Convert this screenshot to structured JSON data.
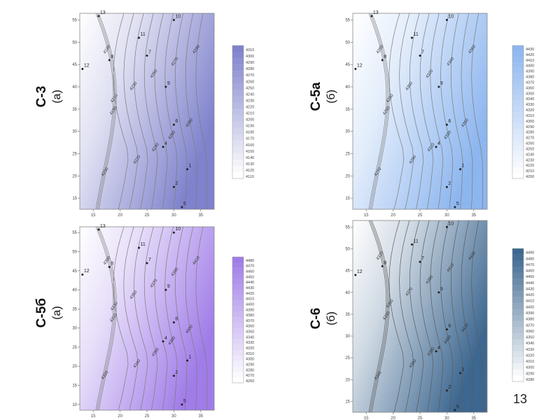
{
  "slide_number": "13",
  "chart_data": [
    {
      "type": "contour",
      "label": "С-3",
      "sub": "(а)",
      "colors": {
        "low": "#ffffff",
        "high": "#7f82cc",
        "line": "#7c7c7c"
      },
      "x_ticks": [
        "15",
        "20",
        "25",
        "30",
        "35"
      ],
      "y_ticks": [
        "15",
        "20",
        "25",
        "30",
        "35",
        "40",
        "45",
        "50",
        "55"
      ],
      "xlim": [
        12.5,
        37.5
      ],
      "ylim": [
        12.5,
        56.5
      ],
      "contour_labels": [
        "4180",
        "4190",
        "4200",
        "4210",
        "4220",
        "4230",
        "4240",
        "4250",
        "4260",
        "4270",
        "4280",
        "4290"
      ],
      "legend": [
        "4310",
        "4300",
        "4290",
        "4280",
        "4270",
        "4260",
        "4250",
        "4240",
        "4230",
        "4220",
        "4210",
        "4200",
        "4190",
        "4180",
        "4170",
        "4160",
        "4150",
        "4140",
        "4130",
        "4120",
        "4110"
      ],
      "wells": [
        {
          "name": "10",
          "x": 30.0,
          "y": 55.0
        },
        {
          "name": "11",
          "x": 23.5,
          "y": 51.0
        },
        {
          "name": "8",
          "x": 18.0,
          "y": 46.0
        },
        {
          "name": "7",
          "x": 25.0,
          "y": 47.0
        },
        {
          "name": "9",
          "x": 28.5,
          "y": 40.0
        },
        {
          "name": "6",
          "x": 30.0,
          "y": 31.5
        },
        {
          "name": "4",
          "x": 28.0,
          "y": 26.5
        },
        {
          "name": "1",
          "x": 32.5,
          "y": 21.5
        },
        {
          "name": "2",
          "x": 30.0,
          "y": 17.5
        },
        {
          "name": "12",
          "x": 13.0,
          "y": 44.0
        },
        {
          "name": "5",
          "x": 31.5,
          "y": 13.0
        },
        {
          "name": "13",
          "x": 16.0,
          "y": 56.5
        }
      ]
    },
    {
      "type": "contour",
      "label": "С-5а",
      "sub": "(б)",
      "colors": {
        "low": "#ffffff",
        "high": "#8db6ef",
        "line": "#7c7c7c"
      },
      "x_ticks": [
        "15",
        "20",
        "25",
        "30",
        "35"
      ],
      "y_ticks": [
        "15",
        "20",
        "25",
        "30",
        "35",
        "40",
        "45",
        "50",
        "55"
      ],
      "xlim": [
        12.5,
        37.5
      ],
      "ylim": [
        12.5,
        56.5
      ],
      "contour_labels": [
        "4250",
        "4260",
        "4270",
        "4280",
        "4290",
        "4300",
        "4310",
        "4320",
        "4330",
        "4340",
        "4350",
        "4360"
      ],
      "legend": [
        "4430",
        "4420",
        "4410",
        "4400",
        "4390",
        "4380",
        "4370",
        "4360",
        "4350",
        "4340",
        "4330",
        "4320",
        "4310",
        "4300",
        "4290",
        "4280",
        "4270",
        "4260",
        "4250",
        "4240",
        "4230",
        "4220",
        "4210",
        "4200"
      ],
      "wells": [
        {
          "name": "10",
          "x": 30.0,
          "y": 55.0
        },
        {
          "name": "11",
          "x": 23.5,
          "y": 51.0
        },
        {
          "name": "8",
          "x": 18.0,
          "y": 46.0
        },
        {
          "name": "7",
          "x": 25.0,
          "y": 47.0
        },
        {
          "name": "9",
          "x": 28.5,
          "y": 40.0
        },
        {
          "name": "6",
          "x": 30.0,
          "y": 31.5
        },
        {
          "name": "4",
          "x": 28.0,
          "y": 26.5
        },
        {
          "name": "1",
          "x": 32.5,
          "y": 21.5
        },
        {
          "name": "2",
          "x": 30.0,
          "y": 17.5
        },
        {
          "name": "12",
          "x": 13.0,
          "y": 44.0
        },
        {
          "name": "5",
          "x": 31.5,
          "y": 13.0
        },
        {
          "name": "13",
          "x": 16.0,
          "y": 56.5
        }
      ]
    },
    {
      "type": "contour",
      "label": "С-5б",
      "sub": "(а)",
      "colors": {
        "low": "#ffffff",
        "high": "#a07ce8",
        "line": "#7c7c7c"
      },
      "x_ticks": [
        "15",
        "20",
        "25",
        "30",
        "35"
      ],
      "y_ticks": [
        "10",
        "15",
        "20",
        "25",
        "30",
        "35",
        "40",
        "45",
        "50",
        "55"
      ],
      "xlim": [
        12.5,
        37.5
      ],
      "ylim": [
        8.5,
        56.5
      ],
      "contour_labels": [
        "4300",
        "4310",
        "4320",
        "4330",
        "4340",
        "4350",
        "4360",
        "4370",
        "4380",
        "4390",
        "4400",
        "4410"
      ],
      "legend": [
        "4480",
        "4470",
        "4460",
        "4450",
        "4440",
        "4430",
        "4420",
        "4410",
        "4400",
        "4390",
        "4380",
        "4370",
        "4360",
        "4350",
        "4340",
        "4330",
        "4320",
        "4310",
        "4300",
        "4290",
        "4280",
        "4270",
        "4260"
      ],
      "wells": [
        {
          "name": "10",
          "x": 30.0,
          "y": 55.0
        },
        {
          "name": "11",
          "x": 23.5,
          "y": 51.0
        },
        {
          "name": "8",
          "x": 18.0,
          "y": 46.0
        },
        {
          "name": "7",
          "x": 25.0,
          "y": 47.0
        },
        {
          "name": "9",
          "x": 28.5,
          "y": 40.0
        },
        {
          "name": "6",
          "x": 30.0,
          "y": 31.5
        },
        {
          "name": "4",
          "x": 28.0,
          "y": 26.5
        },
        {
          "name": "1",
          "x": 32.5,
          "y": 21.5
        },
        {
          "name": "2",
          "x": 30.0,
          "y": 17.5
        },
        {
          "name": "12",
          "x": 13.0,
          "y": 44.0
        },
        {
          "name": "5",
          "x": 31.5,
          "y": 10.0
        },
        {
          "name": "13",
          "x": 16.0,
          "y": 56.5
        }
      ]
    },
    {
      "type": "contour",
      "label": "С-6",
      "sub": "(б)",
      "colors": {
        "low": "#ffffff",
        "high": "#3d6790",
        "line": "#5a5a5a"
      },
      "x_ticks": [
        "15",
        "20",
        "25",
        "30",
        "35"
      ],
      "y_ticks": [
        "15",
        "20",
        "25",
        "30",
        "35",
        "40",
        "45",
        "50",
        "55"
      ],
      "xlim": [
        12.5,
        37.5
      ],
      "ylim": [
        12.5,
        56.5
      ],
      "contour_labels": [
        "4320",
        "4330",
        "4340",
        "4350",
        "4360",
        "4370",
        "4380",
        "4390",
        "4400",
        "4410",
        "4420",
        "4430"
      ],
      "legend": [
        "4490",
        "4480",
        "4470",
        "4460",
        "4450",
        "4440",
        "4430",
        "4420",
        "4410",
        "4400",
        "4390",
        "4380",
        "4370",
        "4360",
        "4350",
        "4340",
        "4330",
        "4320",
        "4310",
        "4300",
        "4290",
        "4280"
      ],
      "wells": [
        {
          "name": "10",
          "x": 30.0,
          "y": 55.0
        },
        {
          "name": "11",
          "x": 23.5,
          "y": 51.0
        },
        {
          "name": "8",
          "x": 18.0,
          "y": 46.0
        },
        {
          "name": "7",
          "x": 25.0,
          "y": 47.0
        },
        {
          "name": "9",
          "x": 28.5,
          "y": 40.0
        },
        {
          "name": "6",
          "x": 30.0,
          "y": 31.5
        },
        {
          "name": "4",
          "x": 28.0,
          "y": 26.5
        },
        {
          "name": "1",
          "x": 32.5,
          "y": 21.5
        },
        {
          "name": "2",
          "x": 30.0,
          "y": 17.5
        },
        {
          "name": "12",
          "x": 13.0,
          "y": 44.0
        },
        {
          "name": "5",
          "x": 31.5,
          "y": 13.0
        }
      ]
    }
  ]
}
